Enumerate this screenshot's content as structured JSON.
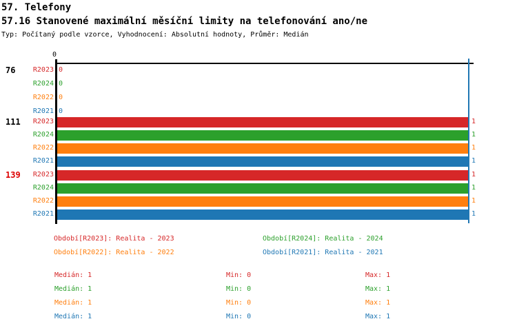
{
  "header": {
    "title": "57. Telefony",
    "subtitle": "57.16 Stanovené maximální měsíční limity na telefonování ano/ne",
    "meta": "Typ: Počítaný podle vzorce, Vyhodnocení: Absolutní hodnoty, Průměr: Medián"
  },
  "colors": {
    "R2023": "#d62728",
    "R2024": "#2ca02c",
    "R2022": "#ff7f0e",
    "R2021": "#1f77b4",
    "axis": "#000000",
    "reference_line": "#1f77b4",
    "group_highlight": "#dd0000",
    "group_normal": "#000000"
  },
  "chart_data": {
    "type": "bar",
    "orientation": "horizontal",
    "xlim": [
      0,
      1
    ],
    "top_axis_tick": "0",
    "grid": false,
    "series_order": [
      "R2023",
      "R2024",
      "R2022",
      "R2021"
    ],
    "groups": [
      {
        "label": "76",
        "label_color": "#000000",
        "values": {
          "R2023": 0,
          "R2024": 0,
          "R2022": 0,
          "R2021": 0
        }
      },
      {
        "label": "111",
        "label_color": "#000000",
        "values": {
          "R2023": 1,
          "R2024": 1,
          "R2022": 1,
          "R2021": 1
        }
      },
      {
        "label": "139",
        "label_color": "#dd0000",
        "values": {
          "R2023": 1,
          "R2024": 1,
          "R2022": 1,
          "R2021": 1
        }
      }
    ]
  },
  "legend": [
    {
      "text": "Období[R2023]: Realita - 2023",
      "color": "#d62728"
    },
    {
      "text": "Období[R2024]: Realita - 2024",
      "color": "#2ca02c"
    },
    {
      "text": "Období[R2022]: Realita - 2022",
      "color": "#ff7f0e"
    },
    {
      "text": "Období[R2021]: Realita - 2021",
      "color": "#1f77b4"
    }
  ],
  "stats": [
    {
      "median": "Medián: 1",
      "min": "Min: 0",
      "max": "Max: 1",
      "color": "#d62728"
    },
    {
      "median": "Medián: 1",
      "min": "Min: 0",
      "max": "Max: 1",
      "color": "#2ca02c"
    },
    {
      "median": "Medián: 1",
      "min": "Min: 0",
      "max": "Max: 1",
      "color": "#ff7f0e"
    },
    {
      "median": "Medián: 1",
      "min": "Min: 0",
      "max": "Max: 1",
      "color": "#1f77b4"
    }
  ]
}
